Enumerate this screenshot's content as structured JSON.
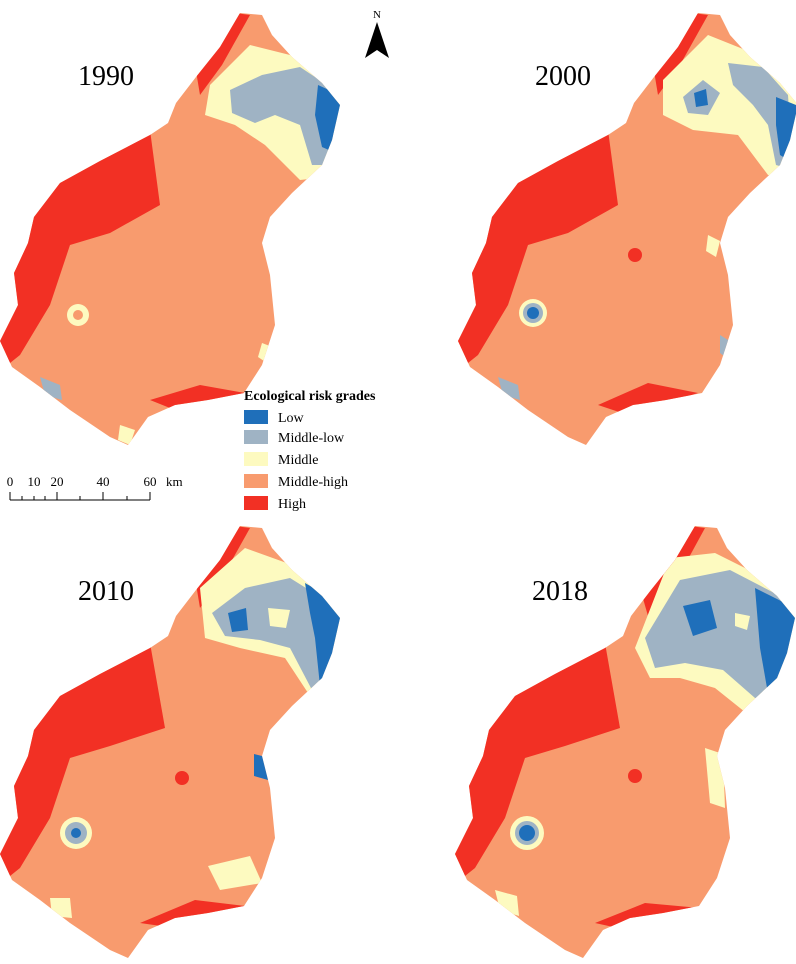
{
  "colors": {
    "low": "#1f6fba",
    "middle_low": "#9fb3c4",
    "middle": "#fdfac0",
    "middle_high": "#f89b6e",
    "high": "#f23024"
  },
  "maps": [
    {
      "year": "1990"
    },
    {
      "year": "2000"
    },
    {
      "year": "2010"
    },
    {
      "year": "2018"
    }
  ],
  "north_arrow": {
    "label": "N"
  },
  "legend": {
    "title": "Ecological risk grades",
    "items": [
      {
        "label": "Low",
        "color": "#1f6fba"
      },
      {
        "label": "Middle-low",
        "color": "#9fb3c4"
      },
      {
        "label": "Middle",
        "color": "#fdfac0"
      },
      {
        "label": "Middle-high",
        "color": "#f89b6e"
      },
      {
        "label": "High",
        "color": "#f23024"
      }
    ]
  },
  "scale_bar": {
    "ticks": [
      "0",
      "10",
      "20",
      "40",
      "60"
    ],
    "unit": "km"
  }
}
